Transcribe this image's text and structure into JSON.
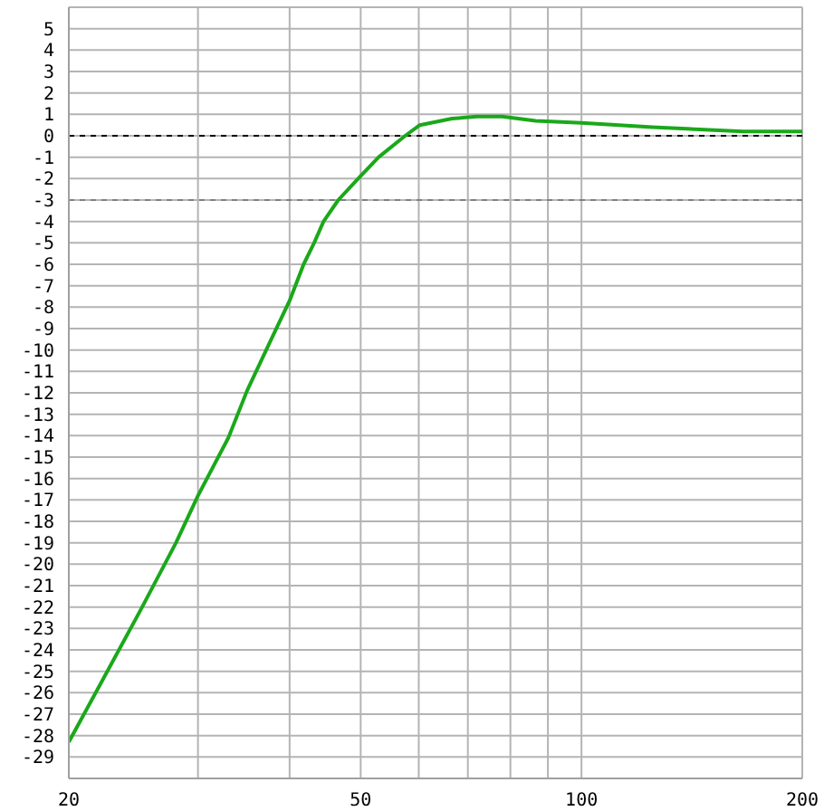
{
  "chart_data": {
    "type": "line",
    "log": "x",
    "grid": true,
    "marker": "none",
    "line_style": "solid",
    "xlim": [
      20,
      200
    ],
    "xticks": [
      20,
      {
        "value": 30,
        "label": null
      },
      {
        "value": 40,
        "label": null
      },
      50,
      {
        "value": 60,
        "label": null
      },
      {
        "value": 70,
        "label": null
      },
      {
        "value": 80,
        "label": null
      },
      {
        "value": 90,
        "label": null
      },
      100,
      200
    ],
    "ylim": [
      -30,
      6
    ],
    "yticks": [
      -29,
      -28,
      -27,
      -26,
      -25,
      -24,
      -23,
      -22,
      -21,
      -20,
      -19,
      -18,
      -17,
      -16,
      -15,
      -14,
      -13,
      -12,
      -11,
      -10,
      -9,
      -8,
      -7,
      -6,
      -5,
      -4,
      -3,
      -2,
      -1,
      0,
      1,
      2,
      3,
      4,
      5
    ],
    "ref_lines": [
      {
        "axis": "y",
        "value": 0,
        "color": "#000000",
        "line_style": "dashed"
      },
      {
        "axis": "y",
        "value": -3,
        "color": "#808080",
        "line_style": "dashed"
      }
    ],
    "series": [
      {
        "color": "#1aa81a",
        "x": [
          20,
          22,
          25,
          28,
          30,
          33,
          35,
          38,
          40,
          41.8,
          43.2,
          44.5,
          46.6,
          49.6,
          52.9,
          57.5,
          60.2,
          66.6,
          72,
          78,
          86.6,
          100,
          125,
          166,
          200
        ],
        "values": [
          -28.3,
          -25.7,
          -22.2,
          -19,
          -16.8,
          -14.1,
          -11.9,
          -9.3,
          -7.7,
          -6,
          -5,
          -4,
          -3,
          -2,
          -1,
          0,
          0.5,
          0.8,
          0.9,
          0.9,
          0.7,
          0.6,
          0.4,
          0.2,
          0.2
        ]
      }
    ]
  }
}
